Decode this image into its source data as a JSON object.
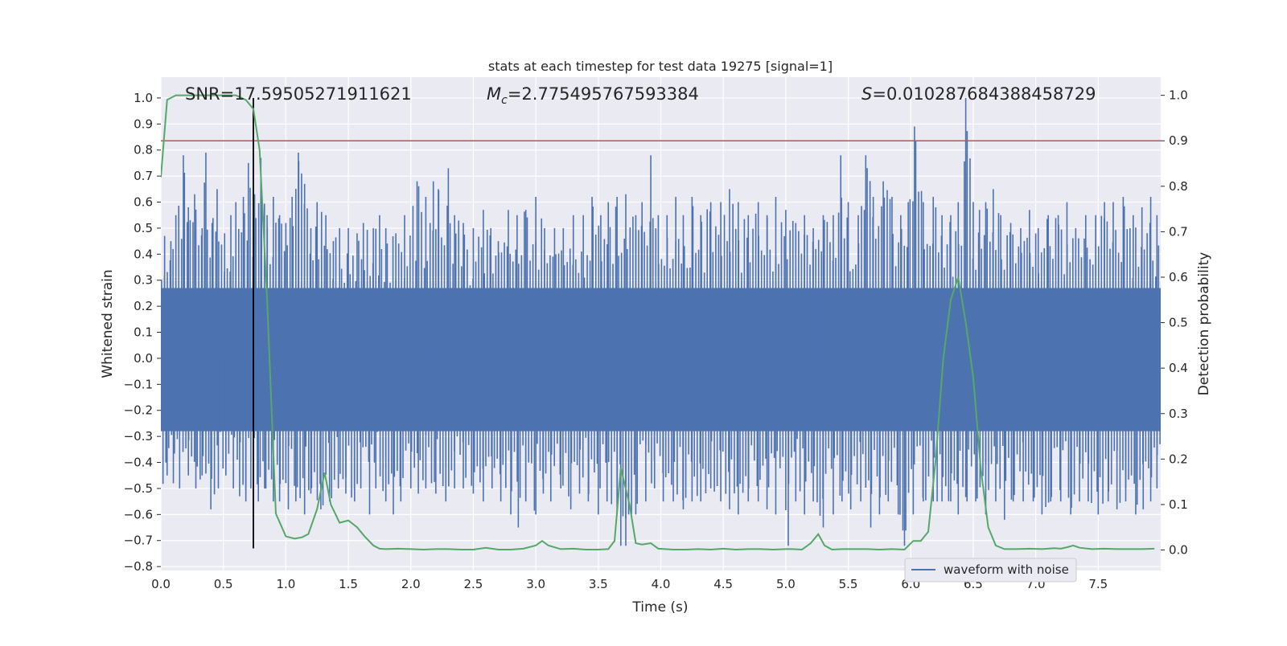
{
  "chart_data": {
    "type": "line",
    "title": "stats at each timestep for test data 19275 [signal=1]",
    "xlabel": "Time (s)",
    "ylabel": "Whitened strain",
    "y2label": "Detection probability",
    "xlim": [
      0.0,
      8.0
    ],
    "ylim": [
      -0.815,
      1.08
    ],
    "y2lim": [
      -0.045,
      1.04
    ],
    "x_ticks": [
      "0.0",
      "0.5",
      "1.0",
      "1.5",
      "2.0",
      "2.5",
      "3.0",
      "3.5",
      "4.0",
      "4.5",
      "5.0",
      "5.5",
      "6.0",
      "6.5",
      "7.0",
      "7.5"
    ],
    "y_ticks": [
      "−0.8",
      "−0.7",
      "−0.6",
      "−0.5",
      "−0.4",
      "−0.3",
      "−0.2",
      "−0.1",
      "0.0",
      "0.1",
      "0.2",
      "0.3",
      "0.4",
      "0.5",
      "0.6",
      "0.7",
      "0.8",
      "0.9",
      "1.0"
    ],
    "y2_ticks": [
      "0.0",
      "0.1",
      "0.2",
      "0.3",
      "0.4",
      "0.5",
      "0.6",
      "0.7",
      "0.8",
      "0.9",
      "1.0"
    ],
    "annotations": {
      "snr": "SNR=17.59505271911621",
      "mc_symbol": "M",
      "mc_sub": "c",
      "mc_value": "=2.775495767593384",
      "s_symbol": "S",
      "s_value": "=0.010287684388458729"
    },
    "legend": {
      "entries": [
        "waveform with noise"
      ],
      "placement": "lower-right"
    },
    "grid": true,
    "threshold": {
      "y2": 0.9,
      "color": "#c44e52"
    },
    "merger_time": 0.74,
    "series": [
      {
        "name": "waveform with noise",
        "axis": "left",
        "color": "#4c72b0",
        "envelope_upper": 0.27,
        "envelope_lower": -0.28,
        "peaks": [
          [
            0.03,
            0.47
          ],
          [
            0.08,
            0.45
          ],
          [
            0.12,
            0.55
          ],
          [
            0.18,
            0.78
          ],
          [
            0.22,
            0.58
          ],
          [
            0.27,
            0.63
          ],
          [
            0.33,
            0.5
          ],
          [
            0.36,
            0.79
          ],
          [
            0.41,
            0.52
          ],
          [
            0.45,
            0.65
          ],
          [
            0.51,
            0.48
          ],
          [
            0.56,
            0.55
          ],
          [
            0.6,
            0.6
          ],
          [
            0.66,
            0.62
          ],
          [
            0.7,
            0.75
          ],
          [
            0.75,
            0.63
          ],
          [
            0.8,
            0.77
          ],
          [
            0.85,
            0.55
          ],
          [
            0.9,
            0.62
          ],
          [
            0.95,
            0.55
          ],
          [
            1.0,
            0.52
          ],
          [
            1.05,
            0.62
          ],
          [
            1.1,
            0.79
          ],
          [
            1.15,
            0.67
          ],
          [
            1.2,
            0.5
          ],
          [
            1.25,
            0.6
          ],
          [
            1.32,
            0.55
          ],
          [
            1.38,
            0.45
          ],
          [
            1.43,
            0.5
          ],
          [
            1.5,
            0.5
          ],
          [
            1.57,
            0.48
          ],
          [
            1.62,
            0.52
          ],
          [
            1.7,
            0.5
          ],
          [
            1.75,
            0.55
          ],
          [
            1.8,
            0.5
          ],
          [
            1.88,
            0.48
          ],
          [
            1.95,
            0.55
          ],
          [
            2.05,
            0.68
          ],
          [
            2.12,
            0.62
          ],
          [
            2.18,
            0.68
          ],
          [
            2.22,
            0.65
          ],
          [
            2.3,
            0.73
          ],
          [
            2.35,
            0.55
          ],
          [
            2.42,
            0.52
          ],
          [
            2.5,
            0.5
          ],
          [
            2.58,
            0.57
          ],
          [
            2.64,
            0.5
          ],
          [
            2.7,
            0.45
          ],
          [
            2.78,
            0.57
          ],
          [
            2.85,
            0.55
          ],
          [
            2.92,
            0.57
          ],
          [
            3.0,
            0.62
          ],
          [
            3.07,
            0.5
          ],
          [
            3.15,
            0.5
          ],
          [
            3.22,
            0.5
          ],
          [
            3.3,
            0.55
          ],
          [
            3.38,
            0.55
          ],
          [
            3.45,
            0.62
          ],
          [
            3.52,
            0.55
          ],
          [
            3.58,
            0.6
          ],
          [
            3.65,
            0.62
          ],
          [
            3.72,
            0.63
          ],
          [
            3.8,
            0.55
          ],
          [
            3.85,
            0.6
          ],
          [
            3.92,
            0.78
          ],
          [
            3.98,
            0.55
          ],
          [
            4.05,
            0.55
          ],
          [
            4.12,
            0.62
          ],
          [
            4.18,
            0.55
          ],
          [
            4.25,
            0.62
          ],
          [
            4.32,
            0.55
          ],
          [
            4.4,
            0.6
          ],
          [
            4.48,
            0.6
          ],
          [
            4.55,
            0.65
          ],
          [
            4.62,
            0.6
          ],
          [
            4.7,
            0.55
          ],
          [
            4.78,
            0.6
          ],
          [
            4.85,
            0.55
          ],
          [
            4.92,
            0.62
          ],
          [
            5.0,
            0.57
          ],
          [
            5.08,
            0.52
          ],
          [
            5.15,
            0.55
          ],
          [
            5.22,
            0.5
          ],
          [
            5.3,
            0.55
          ],
          [
            5.38,
            0.55
          ],
          [
            5.44,
            0.78
          ],
          [
            5.5,
            0.6
          ],
          [
            5.58,
            0.55
          ],
          [
            5.64,
            0.78
          ],
          [
            5.7,
            0.62
          ],
          [
            5.78,
            0.68
          ],
          [
            5.85,
            0.62
          ],
          [
            5.92,
            0.55
          ],
          [
            5.98,
            0.6
          ],
          [
            6.03,
            0.89
          ],
          [
            6.1,
            0.6
          ],
          [
            6.18,
            0.62
          ],
          [
            6.25,
            0.55
          ],
          [
            6.32,
            0.55
          ],
          [
            6.38,
            0.6
          ],
          [
            6.44,
            1.0
          ],
          [
            6.5,
            0.6
          ],
          [
            6.55,
            0.57
          ],
          [
            6.6,
            0.6
          ],
          [
            6.66,
            0.65
          ],
          [
            6.72,
            0.55
          ],
          [
            6.8,
            0.52
          ],
          [
            6.88,
            0.5
          ],
          [
            6.95,
            0.57
          ],
          [
            7.02,
            0.5
          ],
          [
            7.1,
            0.55
          ],
          [
            7.18,
            0.55
          ],
          [
            7.25,
            0.6
          ],
          [
            7.32,
            0.5
          ],
          [
            7.4,
            0.55
          ],
          [
            7.48,
            0.55
          ],
          [
            7.55,
            0.6
          ],
          [
            7.62,
            0.6
          ],
          [
            7.7,
            0.62
          ],
          [
            7.78,
            0.55
          ],
          [
            7.85,
            0.58
          ],
          [
            7.92,
            0.62
          ],
          [
            7.97,
            0.55
          ]
        ],
        "troughs": [
          [
            0.05,
            -0.45
          ],
          [
            0.1,
            -0.48
          ],
          [
            0.15,
            -0.5
          ],
          [
            0.22,
            -0.45
          ],
          [
            0.28,
            -0.5
          ],
          [
            0.33,
            -0.45
          ],
          [
            0.4,
            -0.58
          ],
          [
            0.46,
            -0.5
          ],
          [
            0.52,
            -0.45
          ],
          [
            0.58,
            -0.5
          ],
          [
            0.63,
            -0.53
          ],
          [
            0.68,
            -0.55
          ],
          [
            0.72,
            -0.5
          ],
          [
            0.78,
            -0.55
          ],
          [
            0.83,
            -0.5
          ],
          [
            0.9,
            -0.55
          ],
          [
            0.95,
            -0.55
          ],
          [
            1.02,
            -0.58
          ],
          [
            1.08,
            -0.55
          ],
          [
            1.15,
            -0.6
          ],
          [
            1.2,
            -0.52
          ],
          [
            1.28,
            -0.58
          ],
          [
            1.35,
            -0.55
          ],
          [
            1.42,
            -0.5
          ],
          [
            1.48,
            -0.52
          ],
          [
            1.55,
            -0.55
          ],
          [
            1.6,
            -0.5
          ],
          [
            1.67,
            -0.6
          ],
          [
            1.72,
            -0.5
          ],
          [
            1.8,
            -0.55
          ],
          [
            1.86,
            -0.6
          ],
          [
            1.92,
            -0.55
          ],
          [
            2.0,
            -0.5
          ],
          [
            2.06,
            -0.52
          ],
          [
            2.12,
            -0.5
          ],
          [
            2.2,
            -0.52
          ],
          [
            2.28,
            -0.55
          ],
          [
            2.35,
            -0.5
          ],
          [
            2.42,
            -0.5
          ],
          [
            2.5,
            -0.52
          ],
          [
            2.58,
            -0.55
          ],
          [
            2.65,
            -0.5
          ],
          [
            2.72,
            -0.55
          ],
          [
            2.8,
            -0.6
          ],
          [
            2.86,
            -0.65
          ],
          [
            2.92,
            -0.55
          ],
          [
            3.0,
            -0.6
          ],
          [
            3.06,
            -0.52
          ],
          [
            3.12,
            -0.55
          ],
          [
            3.2,
            -0.5
          ],
          [
            3.28,
            -0.58
          ],
          [
            3.35,
            -0.52
          ],
          [
            3.42,
            -0.55
          ],
          [
            3.5,
            -0.6
          ],
          [
            3.57,
            -0.55
          ],
          [
            3.65,
            -0.6
          ],
          [
            3.68,
            -0.72
          ],
          [
            3.72,
            -0.72
          ],
          [
            3.8,
            -0.6
          ],
          [
            3.88,
            -0.55
          ],
          [
            3.95,
            -0.5
          ],
          [
            4.02,
            -0.55
          ],
          [
            4.1,
            -0.55
          ],
          [
            4.18,
            -0.58
          ],
          [
            4.25,
            -0.55
          ],
          [
            4.32,
            -0.55
          ],
          [
            4.4,
            -0.5
          ],
          [
            4.48,
            -0.55
          ],
          [
            4.55,
            -0.58
          ],
          [
            4.62,
            -0.6
          ],
          [
            4.7,
            -0.55
          ],
          [
            4.78,
            -0.55
          ],
          [
            4.85,
            -0.58
          ],
          [
            4.92,
            -0.6
          ],
          [
            5.02,
            -0.72
          ],
          [
            5.08,
            -0.55
          ],
          [
            5.15,
            -0.6
          ],
          [
            5.22,
            -0.55
          ],
          [
            5.3,
            -0.65
          ],
          [
            5.38,
            -0.6
          ],
          [
            5.45,
            -0.55
          ],
          [
            5.52,
            -0.58
          ],
          [
            5.6,
            -0.55
          ],
          [
            5.68,
            -0.65
          ],
          [
            5.75,
            -0.6
          ],
          [
            5.82,
            -0.55
          ],
          [
            5.9,
            -0.6
          ],
          [
            5.95,
            -0.72
          ],
          [
            6.02,
            -0.6
          ],
          [
            6.1,
            -0.55
          ],
          [
            6.18,
            -0.55
          ],
          [
            6.25,
            -0.55
          ],
          [
            6.32,
            -0.55
          ],
          [
            6.38,
            -0.6
          ],
          [
            6.45,
            -0.55
          ],
          [
            6.52,
            -0.55
          ],
          [
            6.6,
            -0.6
          ],
          [
            6.68,
            -0.55
          ],
          [
            6.75,
            -0.62
          ],
          [
            6.82,
            -0.55
          ],
          [
            6.9,
            -0.55
          ],
          [
            6.98,
            -0.55
          ],
          [
            7.05,
            -0.6
          ],
          [
            7.12,
            -0.55
          ],
          [
            7.2,
            -0.55
          ],
          [
            7.28,
            -0.6
          ],
          [
            7.35,
            -0.55
          ],
          [
            7.42,
            -0.55
          ],
          [
            7.5,
            -0.6
          ],
          [
            7.58,
            -0.55
          ],
          [
            7.65,
            -0.58
          ],
          [
            7.72,
            -0.55
          ],
          [
            7.8,
            -0.6
          ],
          [
            7.86,
            -0.58
          ],
          [
            7.92,
            -0.55
          ],
          [
            7.97,
            -0.5
          ]
        ]
      },
      {
        "name": "",
        "axis": "right",
        "color": "#55a868",
        "x": [
          0.0,
          0.05,
          0.12,
          0.2,
          0.3,
          0.4,
          0.5,
          0.6,
          0.68,
          0.74,
          0.79,
          0.85,
          0.92,
          1.0,
          1.07,
          1.13,
          1.18,
          1.25,
          1.31,
          1.36,
          1.43,
          1.5,
          1.57,
          1.63,
          1.7,
          1.75,
          1.8,
          1.9,
          2.0,
          2.1,
          2.2,
          2.3,
          2.4,
          2.5,
          2.6,
          2.7,
          2.8,
          2.9,
          3.0,
          3.05,
          3.1,
          3.2,
          3.3,
          3.4,
          3.5,
          3.58,
          3.63,
          3.68,
          3.75,
          3.8,
          3.85,
          3.92,
          3.98,
          4.1,
          4.2,
          4.3,
          4.4,
          4.5,
          4.6,
          4.7,
          4.8,
          4.9,
          5.0,
          5.05,
          5.13,
          5.2,
          5.26,
          5.31,
          5.37,
          5.45,
          5.55,
          5.65,
          5.75,
          5.85,
          5.95,
          6.02,
          6.08,
          6.14,
          6.2,
          6.26,
          6.32,
          6.38,
          6.44,
          6.5,
          6.56,
          6.62,
          6.68,
          6.75,
          6.85,
          6.95,
          7.05,
          7.15,
          7.2,
          7.25,
          7.3,
          7.35,
          7.45,
          7.55,
          7.65,
          7.75,
          7.85,
          7.95
        ],
        "y": [
          0.82,
          0.99,
          1.0,
          1.0,
          1.0,
          1.0,
          1.0,
          1.0,
          0.99,
          0.97,
          0.88,
          0.55,
          0.08,
          0.03,
          0.025,
          0.028,
          0.035,
          0.09,
          0.17,
          0.1,
          0.06,
          0.065,
          0.05,
          0.03,
          0.01,
          0.003,
          0.002,
          0.003,
          0.002,
          0.001,
          0.002,
          0.002,
          0.001,
          0.001,
          0.005,
          0.001,
          0.001,
          0.003,
          0.01,
          0.02,
          0.01,
          0.002,
          0.003,
          0.001,
          0.001,
          0.002,
          0.02,
          0.18,
          0.1,
          0.015,
          0.012,
          0.015,
          0.003,
          0.001,
          0.001,
          0.002,
          0.001,
          0.003,
          0.001,
          0.002,
          0.002,
          0.001,
          0.002,
          0.002,
          0.001,
          0.015,
          0.035,
          0.01,
          0.001,
          0.002,
          0.002,
          0.002,
          0.001,
          0.002,
          0.001,
          0.02,
          0.02,
          0.04,
          0.2,
          0.42,
          0.55,
          0.6,
          0.5,
          0.38,
          0.18,
          0.05,
          0.01,
          0.002,
          0.002,
          0.003,
          0.002,
          0.004,
          0.003,
          0.006,
          0.01,
          0.005,
          0.002,
          0.003,
          0.002,
          0.002,
          0.002,
          0.003
        ]
      }
    ]
  }
}
